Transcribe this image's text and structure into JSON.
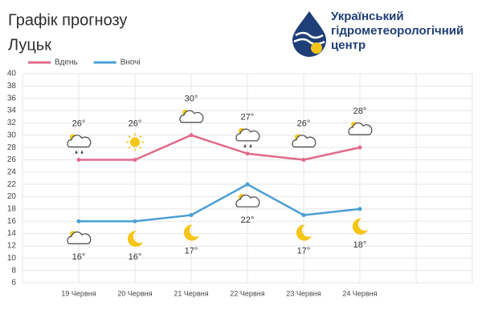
{
  "header": {
    "title": "Графік прогнозу",
    "city": "Луцьк",
    "org": [
      "Український",
      "гідрометеорологічний",
      "центр"
    ]
  },
  "chart_data": {
    "type": "line",
    "categories": [
      "19 Червня",
      "20 Червня",
      "21 Червня",
      "22 Червня",
      "23 Червня",
      "24 Червня",
      null,
      null
    ],
    "series": [
      {
        "name": "Вдень",
        "color": "#e06a8a",
        "values": [
          26,
          26,
          30,
          27,
          26,
          28,
          null,
          null
        ],
        "value_labels": [
          "26°",
          "26°",
          "30°",
          "27°",
          "26°",
          "28°",
          null,
          null
        ]
      },
      {
        "name": "Вночі",
        "color": "#4a9fd4",
        "values": [
          16,
          16,
          17,
          22,
          17,
          18,
          null,
          null
        ],
        "value_labels": [
          "16°",
          "16°",
          "17°",
          "22°",
          "17°",
          "18°",
          null,
          null
        ]
      }
    ],
    "ylim": [
      6,
      40
    ],
    "yticks": [
      6,
      8,
      10,
      12,
      14,
      16,
      18,
      20,
      22,
      24,
      26,
      28,
      30,
      32,
      34,
      36,
      38,
      40
    ],
    "grid": true,
    "legend": "top-left"
  }
}
